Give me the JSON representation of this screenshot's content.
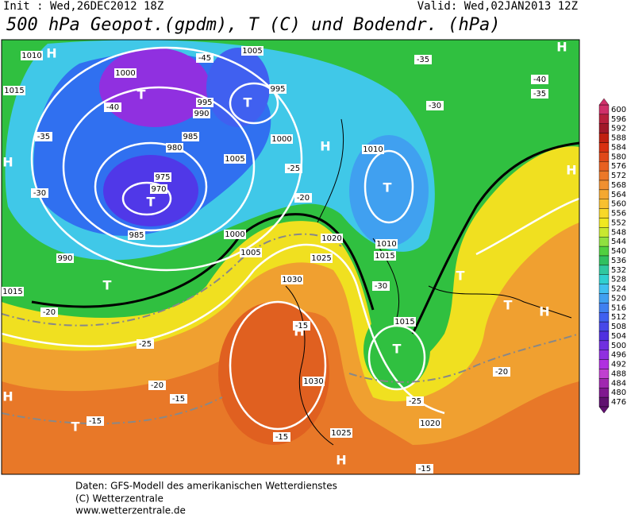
{
  "header": {
    "init": "Init : Wed,26DEC2012 18Z",
    "valid": "Valid: Wed,02JAN2013 12Z",
    "title": "500 hPa Geopot.(gpdm), T (C) und Bodendr. (hPa)"
  },
  "colorbar": {
    "levels": [
      600,
      596,
      592,
      588,
      584,
      580,
      576,
      572,
      568,
      564,
      560,
      556,
      552,
      548,
      544,
      540,
      536,
      532,
      528,
      524,
      520,
      516,
      512,
      508,
      504,
      500,
      496,
      492,
      488,
      484,
      480,
      476
    ],
    "colors": [
      "#d0306a",
      "#b8203c",
      "#a01828",
      "#c02010",
      "#d83010",
      "#e04818",
      "#e86020",
      "#ec7828",
      "#f09030",
      "#f4a830",
      "#f8c030",
      "#f8d828",
      "#f0e820",
      "#c8e830",
      "#90e040",
      "#50d040",
      "#30c060",
      "#30c8a0",
      "#30d0d0",
      "#40c0f0",
      "#40a0f0",
      "#4080f0",
      "#4060f0",
      "#4848e8",
      "#5030e0",
      "#7030e0",
      "#9030e0",
      "#b030e0",
      "#c040d0",
      "#a028b0",
      "#801890",
      "#601070"
    ]
  },
  "map_labels": [
    "H",
    "T",
    "T",
    "H",
    "T",
    "T",
    "H",
    "T",
    "H",
    "T",
    "H",
    "H",
    "T",
    "T",
    "H",
    "H",
    "T",
    "H",
    "1005",
    "1010",
    "1000",
    "1015",
    "995",
    "990",
    "985",
    "980",
    "975",
    "970",
    "985",
    "990",
    "1000",
    "1005",
    "1020",
    "1025",
    "1030",
    "1015",
    "1010",
    "1030",
    "1025",
    "1020",
    "1015",
    "995",
    "1000",
    "1005",
    "1010",
    "1015",
    "-45",
    "-40",
    "-35",
    "-30",
    "-25",
    "-20",
    "-15",
    "-30",
    "-35",
    "-40",
    "-20",
    "-25",
    "-15",
    "-15",
    "-20",
    "-25",
    "-30",
    "-35",
    "-15",
    "-20",
    "-15"
  ],
  "footer": {
    "line1": "Daten: GFS-Modell des amerikanischen Wetterdienstes",
    "line2": "(C) Wetterzentrale",
    "line3": "www.wetterzentrale.de"
  }
}
